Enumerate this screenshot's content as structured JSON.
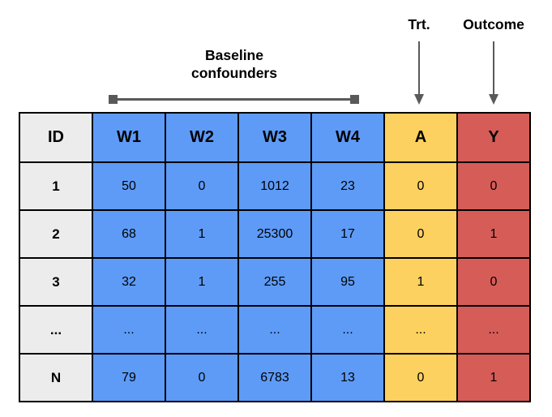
{
  "annotations": {
    "baseline_line1": "Baseline",
    "baseline_line2": "confounders",
    "trt_label": "Trt.",
    "outcome_label": "Outcome"
  },
  "colors": {
    "id": "#ececec",
    "confounder": "#5e9bf7",
    "treatment": "#fdd15f",
    "outcome": "#d65c58",
    "annotation_gray": "#595959",
    "border": "#000000",
    "text": "#000000"
  },
  "table": {
    "columns": [
      {
        "key": "ID",
        "label": "ID",
        "group": "id"
      },
      {
        "key": "W1",
        "label": "W1",
        "group": "confounder"
      },
      {
        "key": "W2",
        "label": "W2",
        "group": "confounder"
      },
      {
        "key": "W3",
        "label": "W3",
        "group": "confounder"
      },
      {
        "key": "W4",
        "label": "W4",
        "group": "confounder"
      },
      {
        "key": "A",
        "label": "A",
        "group": "treatment"
      },
      {
        "key": "Y",
        "label": "Y",
        "group": "outcome"
      }
    ],
    "rows": [
      [
        "1",
        "50",
        "0",
        "1012",
        "23",
        "0",
        "0"
      ],
      [
        "2",
        "68",
        "1",
        "25300",
        "17",
        "0",
        "1"
      ],
      [
        "3",
        "32",
        "1",
        "255",
        "95",
        "1",
        "0"
      ],
      [
        "...",
        "...",
        "...",
        "...",
        "...",
        "...",
        "..."
      ],
      [
        "N",
        "79",
        "0",
        "6783",
        "13",
        "0",
        "1"
      ]
    ]
  }
}
